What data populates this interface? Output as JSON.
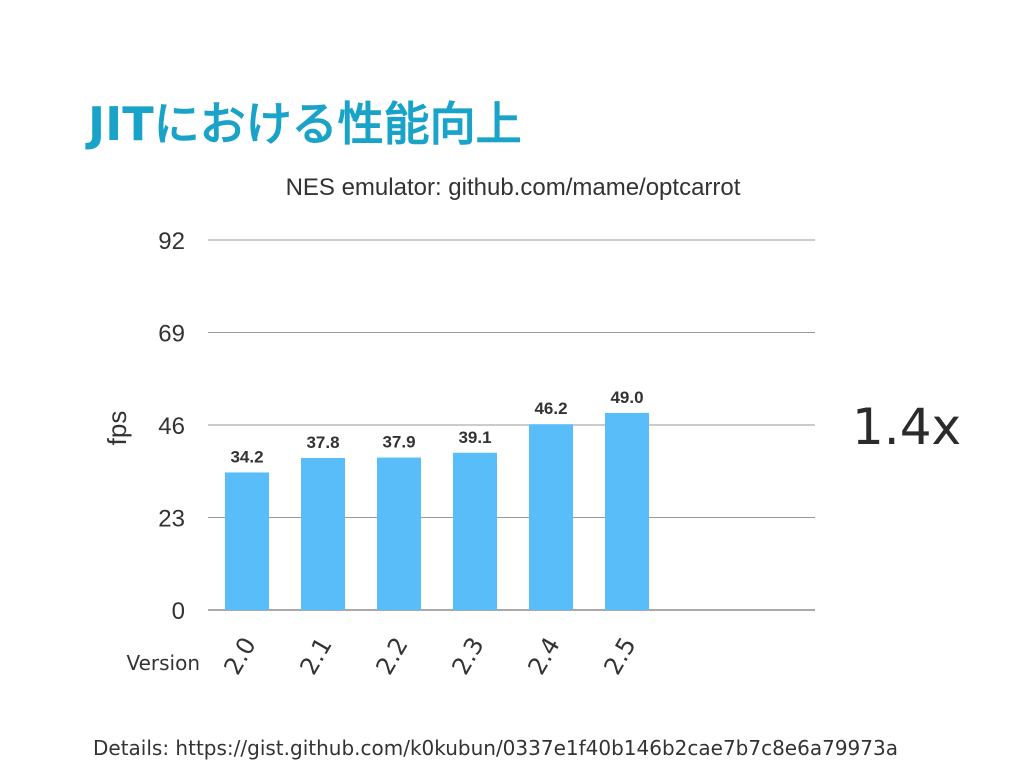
{
  "slide": {
    "title": "JITにおける性能向上",
    "speedup_label": "1.4x",
    "details": "Details: https://gist.github.com/k0kubun/0337e1f40b146b2cae7b7c8e6a79973a"
  },
  "chart_data": {
    "type": "bar",
    "title": "NES emulator: github.com/mame/optcarrot",
    "xlabel": "Version",
    "ylabel": "fps",
    "categories": [
      "2.0",
      "2.1",
      "2.2",
      "2.3",
      "2.4",
      "2.5"
    ],
    "values": [
      34.2,
      37.8,
      37.9,
      39.1,
      46.2,
      49.0
    ],
    "value_labels": [
      "34.2",
      "37.8",
      "37.9",
      "39.1",
      "46.2",
      "49.0"
    ],
    "ylim": [
      0,
      92
    ],
    "yticks": [
      "0",
      "23",
      "46",
      "69",
      "92"
    ],
    "bar_color": "#59bdf9",
    "grid": true,
    "legend": "none"
  },
  "colors": {
    "title": "#1aa3c9",
    "grid": "#999999",
    "text": "#333333"
  }
}
